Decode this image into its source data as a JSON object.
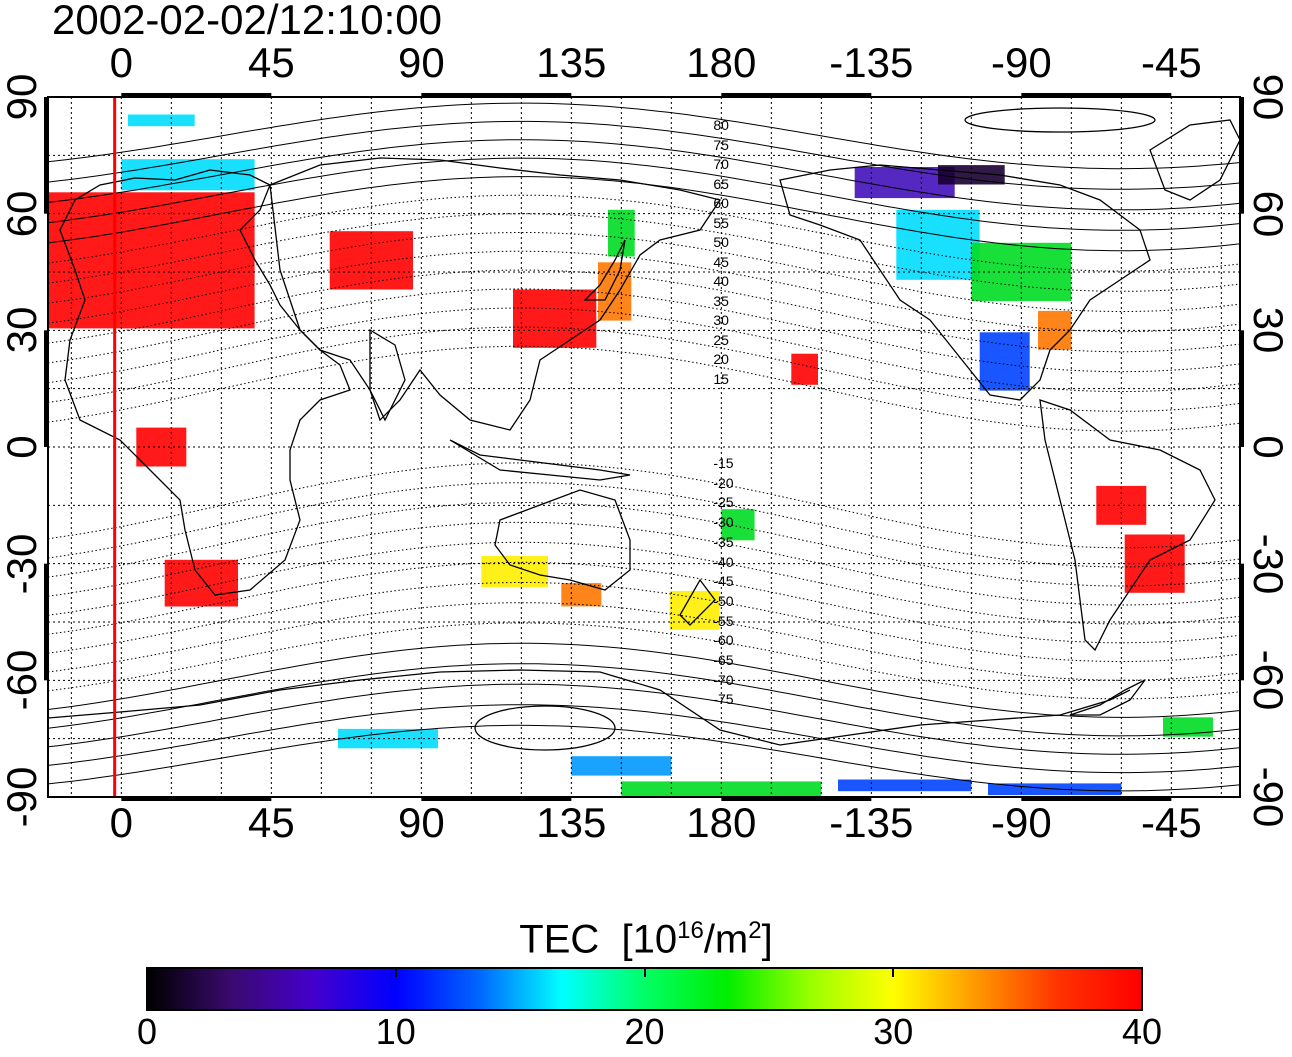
{
  "title": "2002-02-02/12:10:00",
  "axes": {
    "top_ticks": [
      "0",
      "45",
      "90",
      "135",
      "180",
      "-135",
      "-90",
      "-45"
    ],
    "bottom_ticks": [
      "0",
      "45",
      "90",
      "135",
      "180",
      "-135",
      "-90",
      "-45"
    ],
    "left_ticks": [
      "90",
      "60",
      "30",
      "0",
      "-30",
      "-60",
      "-90"
    ],
    "right_ticks": [
      "90",
      "60",
      "30",
      "0",
      "-30",
      "-60",
      "-90"
    ]
  },
  "contour_labels": {
    "north": [
      "80",
      "75",
      "70",
      "65",
      "60",
      "55",
      "50",
      "45",
      "40",
      "35",
      "30",
      "25",
      "20",
      "15"
    ],
    "south": [
      "-15",
      "-20",
      "-25",
      "-30",
      "-35",
      "-40",
      "-45",
      "-50",
      "-55",
      "-60",
      "-65",
      "-70",
      "-75"
    ]
  },
  "colorbar": {
    "title": "TEC",
    "unit_base": "10",
    "unit_exp": "16",
    "unit_mid": "/m",
    "unit_exp2": "2",
    "ticks": [
      "0",
      "10",
      "20",
      "30",
      "40"
    ],
    "stops": [
      "#000000",
      "#3a0a6e",
      "#4400cc",
      "#0000ff",
      "#0066ff",
      "#00ffff",
      "#00ff66",
      "#00ee00",
      "#99ff00",
      "#ffff00",
      "#ff9900",
      "#ff3300",
      "#ff0000"
    ]
  },
  "colors": {
    "red": "#ff0000",
    "orange": "#ff7700",
    "yellow": "#ffee00",
    "green": "#00dd22",
    "cyan": "#00ddff",
    "blue": "#0044ff",
    "violet": "#4411bb",
    "dark": "#1a0033",
    "lightblue": "#0099ff"
  },
  "terminator_line": {
    "longitude": -2,
    "color": "#ff0000"
  },
  "tec_patches": [
    {
      "lon": 5,
      "lat": 48,
      "w": 70,
      "h": 35,
      "c": "red"
    },
    {
      "lon": 75,
      "lat": 48,
      "w": 25,
      "h": 15,
      "c": "red"
    },
    {
      "lon": 130,
      "lat": 33,
      "w": 25,
      "h": 15,
      "c": "red"
    },
    {
      "lon": 148,
      "lat": 40,
      "w": 10,
      "h": 15,
      "c": "orange"
    },
    {
      "lon": 150,
      "lat": 55,
      "w": 8,
      "h": 12,
      "c": "green"
    },
    {
      "lon": 12,
      "lat": 0,
      "w": 15,
      "h": 10,
      "c": "red"
    },
    {
      "lon": 24,
      "lat": -35,
      "w": 22,
      "h": 12,
      "c": "red"
    },
    {
      "lon": 20,
      "lat": 70,
      "w": 40,
      "h": 8,
      "c": "cyan"
    },
    {
      "lon": 12,
      "lat": 84,
      "w": 20,
      "h": 3,
      "c": "cyan"
    },
    {
      "lon": -115,
      "lat": 52,
      "w": 25,
      "h": 18,
      "c": "cyan"
    },
    {
      "lon": -90,
      "lat": 45,
      "w": 30,
      "h": 15,
      "c": "green"
    },
    {
      "lon": -95,
      "lat": 22,
      "w": 15,
      "h": 15,
      "c": "blue"
    },
    {
      "lon": -80,
      "lat": 30,
      "w": 10,
      "h": 10,
      "c": "orange"
    },
    {
      "lon": -125,
      "lat": 68,
      "w": 30,
      "h": 8,
      "c": "violet"
    },
    {
      "lon": -105,
      "lat": 70,
      "w": 20,
      "h": 5,
      "c": "dark"
    },
    {
      "lon": -60,
      "lat": -15,
      "w": 15,
      "h": 10,
      "c": "red"
    },
    {
      "lon": -50,
      "lat": -30,
      "w": 18,
      "h": 15,
      "c": "red"
    },
    {
      "lon": 118,
      "lat": -32,
      "w": 20,
      "h": 8,
      "c": "yellow"
    },
    {
      "lon": 138,
      "lat": -38,
      "w": 12,
      "h": 6,
      "c": "orange"
    },
    {
      "lon": 172,
      "lat": -42,
      "w": 15,
      "h": 10,
      "c": "yellow"
    },
    {
      "lon": 185,
      "lat": -20,
      "w": 10,
      "h": 8,
      "c": "green"
    },
    {
      "lon": -155,
      "lat": 20,
      "w": 8,
      "h": 8,
      "c": "red"
    },
    {
      "lon": 80,
      "lat": -75,
      "w": 30,
      "h": 5,
      "c": "cyan"
    },
    {
      "lon": 150,
      "lat": -82,
      "w": 30,
      "h": 5,
      "c": "lightblue"
    },
    {
      "lon": 180,
      "lat": -88,
      "w": 60,
      "h": 4,
      "c": "green"
    },
    {
      "lon": -125,
      "lat": -87,
      "w": 40,
      "h": 3,
      "c": "blue"
    },
    {
      "lon": -80,
      "lat": -88,
      "w": 40,
      "h": 3,
      "c": "blue"
    },
    {
      "lon": -40,
      "lat": -72,
      "w": 15,
      "h": 5,
      "c": "green"
    }
  ]
}
